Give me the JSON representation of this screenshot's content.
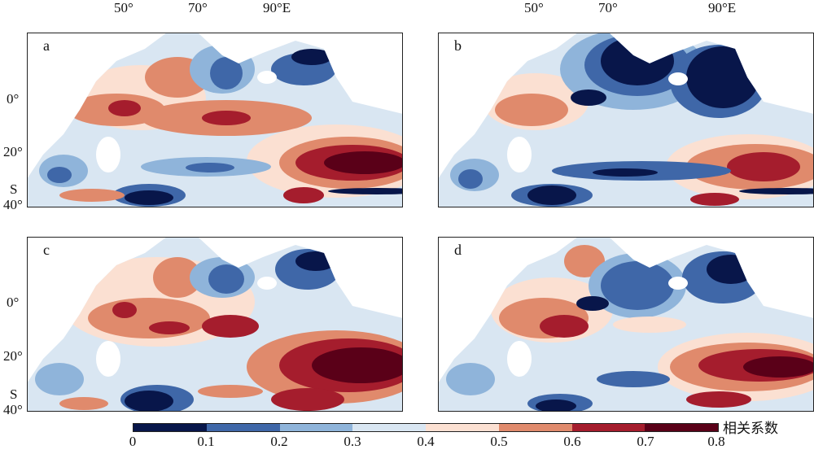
{
  "map": {
    "lon_labels": [
      "50°",
      "70°",
      "90°E"
    ],
    "lat_labels": [
      "0°",
      "20°",
      "S",
      "40°"
    ],
    "panels": [
      {
        "id": "a",
        "label": "a"
      },
      {
        "id": "b",
        "label": "b"
      },
      {
        "id": "c",
        "label": "c"
      },
      {
        "id": "d",
        "label": "d"
      }
    ]
  },
  "colorbar": {
    "title": "相关系数",
    "ticks": [
      "0",
      "0.1",
      "0.2",
      "0.3",
      "0.4",
      "0.5",
      "0.6",
      "0.7",
      "0.8"
    ],
    "colors": [
      "#08164a",
      "#3f67a8",
      "#8fb4da",
      "#d9e6f2",
      "#fbe0d2",
      "#e08a6c",
      "#a51d2d",
      "#5a0018"
    ]
  }
}
